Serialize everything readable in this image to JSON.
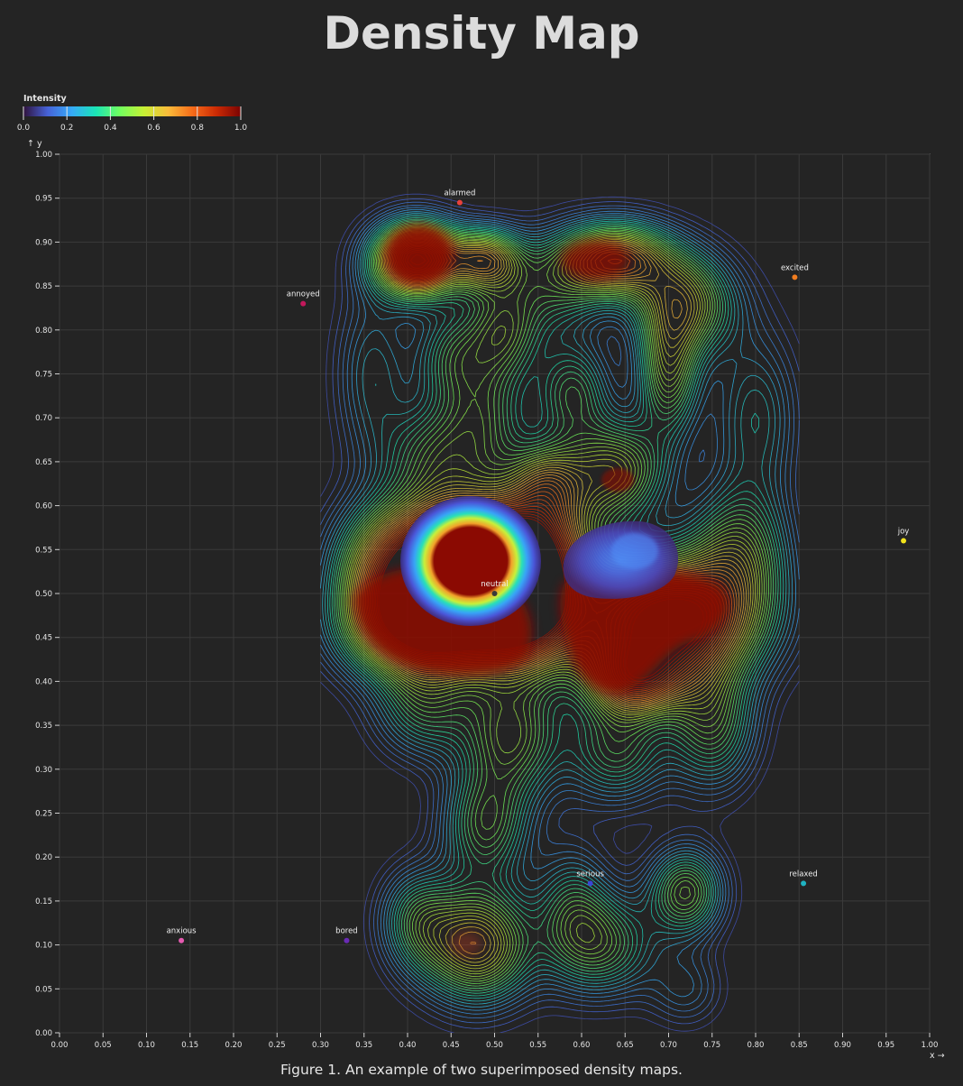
{
  "title": "Density Map",
  "caption": "Figure 1. An example of two superimposed density maps.",
  "colorbar": {
    "label": "Intensity",
    "ticks": [
      "0.0",
      "0.2",
      "0.4",
      "0.6",
      "0.8",
      "1.0"
    ],
    "colors": [
      "#30123b",
      "#4662d7",
      "#36aaf9",
      "#1ae4b6",
      "#72fe5e",
      "#c7ef34",
      "#fabb3a",
      "#f66b19",
      "#cb2a04",
      "#7a0403"
    ]
  },
  "axes": {
    "x_label": "x →",
    "y_label": "↑ y",
    "x_ticks": [
      "0.00",
      "0.05",
      "0.10",
      "0.15",
      "0.20",
      "0.25",
      "0.30",
      "0.35",
      "0.40",
      "0.45",
      "0.50",
      "0.55",
      "0.60",
      "0.65",
      "0.70",
      "0.75",
      "0.80",
      "0.85",
      "0.90",
      "0.95",
      "1.00"
    ],
    "y_ticks": [
      "0.00",
      "0.05",
      "0.10",
      "0.15",
      "0.20",
      "0.25",
      "0.30",
      "0.35",
      "0.40",
      "0.45",
      "0.50",
      "0.55",
      "0.60",
      "0.65",
      "0.70",
      "0.75",
      "0.80",
      "0.85",
      "0.90",
      "0.95",
      "1.00"
    ]
  },
  "chart_data": {
    "type": "heatmap",
    "xlim": [
      0,
      1
    ],
    "ylim": [
      0,
      1
    ],
    "grid": true,
    "points": [
      {
        "label": "alarmed",
        "x": 0.46,
        "y": 0.945,
        "color": "#e8413b"
      },
      {
        "label": "excited",
        "x": 0.845,
        "y": 0.86,
        "color": "#f27d1f"
      },
      {
        "label": "annoyed",
        "x": 0.28,
        "y": 0.83,
        "color": "#c2185b"
      },
      {
        "label": "joy",
        "x": 0.97,
        "y": 0.56,
        "color": "#f1e21b"
      },
      {
        "label": "neutral",
        "x": 0.5,
        "y": 0.5,
        "color": "#3a3a3a"
      },
      {
        "label": "serious",
        "x": 0.61,
        "y": 0.17,
        "color": "#3b45d6"
      },
      {
        "label": "relaxed",
        "x": 0.855,
        "y": 0.17,
        "color": "#1fb2c1"
      },
      {
        "label": "anxious",
        "x": 0.14,
        "y": 0.105,
        "color": "#e55ab0"
      },
      {
        "label": "bored",
        "x": 0.33,
        "y": 0.105,
        "color": "#6a2bb5"
      }
    ]
  }
}
